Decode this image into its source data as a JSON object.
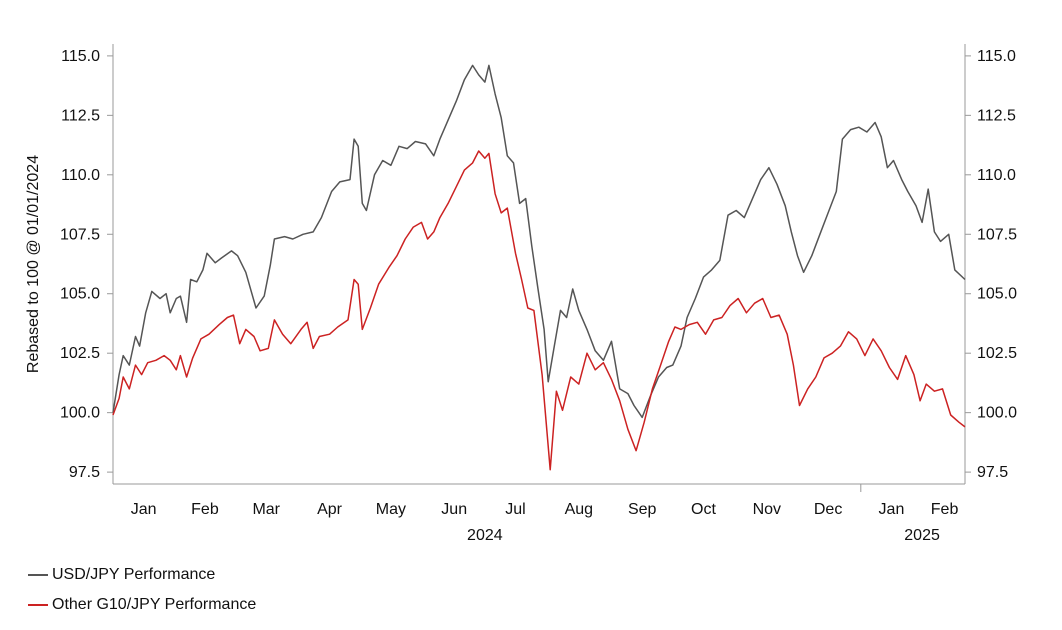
{
  "chart_data": {
    "type": "line",
    "ylabel": "Rebased to 100 @ 01/01/2024",
    "ylim": [
      97.0,
      115.5
    ],
    "y_ticks": [
      "115.0",
      "112.5",
      "110.0",
      "107.5",
      "105.0",
      "102.5",
      "100.0",
      "97.5"
    ],
    "y_tick_values": [
      115.0,
      112.5,
      110.0,
      107.5,
      105.0,
      102.5,
      100.0,
      97.5
    ],
    "x_range": [
      "2024-01-01",
      "2025-02-21"
    ],
    "month_labels": [
      "Jan",
      "Feb",
      "Mar",
      "Apr",
      "May",
      "Jun",
      "Jul",
      "Aug",
      "Sep",
      "Oct",
      "Nov",
      "Dec",
      "Jan",
      "Feb"
    ],
    "month_label_dates": [
      "2024-01-16",
      "2024-02-15",
      "2024-03-16",
      "2024-04-16",
      "2024-05-16",
      "2024-06-16",
      "2024-07-16",
      "2024-08-16",
      "2024-09-16",
      "2024-10-16",
      "2024-11-16",
      "2024-12-16",
      "2025-01-16",
      "2025-02-11"
    ],
    "year_labels": [
      "2024",
      "2025"
    ],
    "year_label_dates": [
      "2024-07-01",
      "2025-01-31"
    ],
    "year_divider_date": "2025-01-01",
    "grid": false,
    "legend_position": "bottom-left",
    "series": [
      {
        "name": "USD/JPY Performance",
        "color": "#555555",
        "points": [
          [
            "2024-01-01",
            100.0
          ],
          [
            "2024-01-04",
            101.6
          ],
          [
            "2024-01-06",
            102.4
          ],
          [
            "2024-01-09",
            102.0
          ],
          [
            "2024-01-12",
            103.2
          ],
          [
            "2024-01-14",
            102.8
          ],
          [
            "2024-01-17",
            104.2
          ],
          [
            "2024-01-20",
            105.1
          ],
          [
            "2024-01-24",
            104.8
          ],
          [
            "2024-01-27",
            105.0
          ],
          [
            "2024-01-29",
            104.2
          ],
          [
            "2024-02-01",
            104.8
          ],
          [
            "2024-02-03",
            104.9
          ],
          [
            "2024-02-06",
            103.8
          ],
          [
            "2024-02-08",
            105.6
          ],
          [
            "2024-02-11",
            105.5
          ],
          [
            "2024-02-14",
            106.0
          ],
          [
            "2024-02-16",
            106.7
          ],
          [
            "2024-02-20",
            106.3
          ],
          [
            "2024-02-23",
            106.5
          ],
          [
            "2024-02-28",
            106.8
          ],
          [
            "2024-03-02",
            106.6
          ],
          [
            "2024-03-06",
            105.9
          ],
          [
            "2024-03-09",
            105.0
          ],
          [
            "2024-03-11",
            104.4
          ],
          [
            "2024-03-15",
            104.9
          ],
          [
            "2024-03-18",
            106.2
          ],
          [
            "2024-03-20",
            107.3
          ],
          [
            "2024-03-25",
            107.4
          ],
          [
            "2024-03-29",
            107.3
          ],
          [
            "2024-04-03",
            107.5
          ],
          [
            "2024-04-08",
            107.6
          ],
          [
            "2024-04-12",
            108.2
          ],
          [
            "2024-04-17",
            109.3
          ],
          [
            "2024-04-21",
            109.7
          ],
          [
            "2024-04-26",
            109.8
          ],
          [
            "2024-04-28",
            111.5
          ],
          [
            "2024-04-30",
            111.2
          ],
          [
            "2024-05-02",
            108.8
          ],
          [
            "2024-05-04",
            108.5
          ],
          [
            "2024-05-08",
            110.0
          ],
          [
            "2024-05-12",
            110.6
          ],
          [
            "2024-05-16",
            110.4
          ],
          [
            "2024-05-20",
            111.2
          ],
          [
            "2024-05-24",
            111.1
          ],
          [
            "2024-05-28",
            111.4
          ],
          [
            "2024-06-02",
            111.3
          ],
          [
            "2024-06-06",
            110.8
          ],
          [
            "2024-06-09",
            111.5
          ],
          [
            "2024-06-13",
            112.3
          ],
          [
            "2024-06-17",
            113.1
          ],
          [
            "2024-06-21",
            114.0
          ],
          [
            "2024-06-25",
            114.6
          ],
          [
            "2024-06-28",
            114.2
          ],
          [
            "2024-07-01",
            113.9
          ],
          [
            "2024-07-03",
            114.6
          ],
          [
            "2024-07-06",
            113.4
          ],
          [
            "2024-07-09",
            112.4
          ],
          [
            "2024-07-12",
            110.8
          ],
          [
            "2024-07-15",
            110.5
          ],
          [
            "2024-07-18",
            108.8
          ],
          [
            "2024-07-21",
            109.0
          ],
          [
            "2024-07-24",
            107.0
          ],
          [
            "2024-07-27",
            105.2
          ],
          [
            "2024-07-30",
            103.5
          ],
          [
            "2024-08-01",
            101.3
          ],
          [
            "2024-08-04",
            102.8
          ],
          [
            "2024-08-07",
            104.3
          ],
          [
            "2024-08-10",
            104.0
          ],
          [
            "2024-08-13",
            105.2
          ],
          [
            "2024-08-16",
            104.3
          ],
          [
            "2024-08-20",
            103.5
          ],
          [
            "2024-08-24",
            102.6
          ],
          [
            "2024-08-28",
            102.2
          ],
          [
            "2024-09-01",
            103.0
          ],
          [
            "2024-09-05",
            101.0
          ],
          [
            "2024-09-09",
            100.8
          ],
          [
            "2024-09-12",
            100.3
          ],
          [
            "2024-09-16",
            99.8
          ],
          [
            "2024-09-20",
            100.7
          ],
          [
            "2024-09-24",
            101.5
          ],
          [
            "2024-09-28",
            101.9
          ],
          [
            "2024-10-01",
            102.0
          ],
          [
            "2024-10-05",
            102.8
          ],
          [
            "2024-10-08",
            104.0
          ],
          [
            "2024-10-12",
            104.8
          ],
          [
            "2024-10-16",
            105.7
          ],
          [
            "2024-10-20",
            106.0
          ],
          [
            "2024-10-24",
            106.4
          ],
          [
            "2024-10-28",
            108.3
          ],
          [
            "2024-11-01",
            108.5
          ],
          [
            "2024-11-05",
            108.2
          ],
          [
            "2024-11-09",
            109.0
          ],
          [
            "2024-11-13",
            109.8
          ],
          [
            "2024-11-17",
            110.3
          ],
          [
            "2024-11-21",
            109.6
          ],
          [
            "2024-11-25",
            108.7
          ],
          [
            "2024-11-28",
            107.6
          ],
          [
            "2024-12-01",
            106.6
          ],
          [
            "2024-12-04",
            105.9
          ],
          [
            "2024-12-08",
            106.6
          ],
          [
            "2024-12-12",
            107.5
          ],
          [
            "2024-12-16",
            108.4
          ],
          [
            "2024-12-20",
            109.3
          ],
          [
            "2024-12-23",
            111.5
          ],
          [
            "2024-12-27",
            111.9
          ],
          [
            "2024-12-31",
            112.0
          ],
          [
            "2025-01-04",
            111.8
          ],
          [
            "2025-01-08",
            112.2
          ],
          [
            "2025-01-11",
            111.6
          ],
          [
            "2025-01-14",
            110.3
          ],
          [
            "2025-01-17",
            110.6
          ],
          [
            "2025-01-21",
            109.8
          ],
          [
            "2025-01-24",
            109.3
          ],
          [
            "2025-01-28",
            108.7
          ],
          [
            "2025-01-31",
            108.0
          ],
          [
            "2025-02-03",
            109.4
          ],
          [
            "2025-02-06",
            107.6
          ],
          [
            "2025-02-09",
            107.2
          ],
          [
            "2025-02-13",
            107.5
          ],
          [
            "2025-02-16",
            106.0
          ],
          [
            "2025-02-21",
            105.6
          ]
        ]
      },
      {
        "name": "Other G10/JPY Performance",
        "color": "#cc2222",
        "points": [
          [
            "2024-01-01",
            99.9
          ],
          [
            "2024-01-04",
            100.6
          ],
          [
            "2024-01-06",
            101.5
          ],
          [
            "2024-01-09",
            101.0
          ],
          [
            "2024-01-12",
            102.0
          ],
          [
            "2024-01-15",
            101.6
          ],
          [
            "2024-01-18",
            102.1
          ],
          [
            "2024-01-22",
            102.2
          ],
          [
            "2024-01-26",
            102.4
          ],
          [
            "2024-01-29",
            102.2
          ],
          [
            "2024-02-01",
            101.8
          ],
          [
            "2024-02-03",
            102.4
          ],
          [
            "2024-02-06",
            101.5
          ],
          [
            "2024-02-09",
            102.3
          ],
          [
            "2024-02-13",
            103.1
          ],
          [
            "2024-02-17",
            103.3
          ],
          [
            "2024-02-22",
            103.7
          ],
          [
            "2024-02-26",
            104.0
          ],
          [
            "2024-02-29",
            104.1
          ],
          [
            "2024-03-03",
            102.9
          ],
          [
            "2024-03-06",
            103.5
          ],
          [
            "2024-03-10",
            103.2
          ],
          [
            "2024-03-13",
            102.6
          ],
          [
            "2024-03-17",
            102.7
          ],
          [
            "2024-03-20",
            103.9
          ],
          [
            "2024-03-24",
            103.3
          ],
          [
            "2024-03-28",
            102.9
          ],
          [
            "2024-04-02",
            103.5
          ],
          [
            "2024-04-05",
            103.8
          ],
          [
            "2024-04-08",
            102.7
          ],
          [
            "2024-04-11",
            103.2
          ],
          [
            "2024-04-16",
            103.3
          ],
          [
            "2024-04-20",
            103.6
          ],
          [
            "2024-04-25",
            103.9
          ],
          [
            "2024-04-28",
            105.6
          ],
          [
            "2024-04-30",
            105.4
          ],
          [
            "2024-05-02",
            103.5
          ],
          [
            "2024-05-06",
            104.4
          ],
          [
            "2024-05-10",
            105.4
          ],
          [
            "2024-05-15",
            106.1
          ],
          [
            "2024-05-19",
            106.6
          ],
          [
            "2024-05-23",
            107.3
          ],
          [
            "2024-05-27",
            107.8
          ],
          [
            "2024-05-31",
            108.0
          ],
          [
            "2024-06-03",
            107.3
          ],
          [
            "2024-06-06",
            107.6
          ],
          [
            "2024-06-09",
            108.2
          ],
          [
            "2024-06-13",
            108.8
          ],
          [
            "2024-06-17",
            109.5
          ],
          [
            "2024-06-21",
            110.2
          ],
          [
            "2024-06-25",
            110.5
          ],
          [
            "2024-06-28",
            111.0
          ],
          [
            "2024-07-01",
            110.7
          ],
          [
            "2024-07-03",
            110.9
          ],
          [
            "2024-07-06",
            109.2
          ],
          [
            "2024-07-09",
            108.4
          ],
          [
            "2024-07-12",
            108.6
          ],
          [
            "2024-07-16",
            106.7
          ],
          [
            "2024-07-19",
            105.6
          ],
          [
            "2024-07-22",
            104.4
          ],
          [
            "2024-07-25",
            104.3
          ],
          [
            "2024-07-29",
            101.6
          ],
          [
            "2024-08-02",
            97.6
          ],
          [
            "2024-08-05",
            100.9
          ],
          [
            "2024-08-08",
            100.1
          ],
          [
            "2024-08-12",
            101.5
          ],
          [
            "2024-08-16",
            101.2
          ],
          [
            "2024-08-20",
            102.5
          ],
          [
            "2024-08-24",
            101.8
          ],
          [
            "2024-08-28",
            102.1
          ],
          [
            "2024-09-01",
            101.4
          ],
          [
            "2024-09-05",
            100.5
          ],
          [
            "2024-09-09",
            99.3
          ],
          [
            "2024-09-13",
            98.4
          ],
          [
            "2024-09-17",
            99.6
          ],
          [
            "2024-09-21",
            101.0
          ],
          [
            "2024-09-25",
            102.0
          ],
          [
            "2024-09-29",
            103.0
          ],
          [
            "2024-10-02",
            103.6
          ],
          [
            "2024-10-05",
            103.5
          ],
          [
            "2024-10-09",
            103.7
          ],
          [
            "2024-10-13",
            103.8
          ],
          [
            "2024-10-17",
            103.3
          ],
          [
            "2024-10-21",
            103.9
          ],
          [
            "2024-10-25",
            104.0
          ],
          [
            "2024-10-29",
            104.5
          ],
          [
            "2024-11-02",
            104.8
          ],
          [
            "2024-11-06",
            104.2
          ],
          [
            "2024-11-10",
            104.6
          ],
          [
            "2024-11-14",
            104.8
          ],
          [
            "2024-11-18",
            104.0
          ],
          [
            "2024-11-22",
            104.1
          ],
          [
            "2024-11-26",
            103.3
          ],
          [
            "2024-11-29",
            102.0
          ],
          [
            "2024-12-02",
            100.3
          ],
          [
            "2024-12-06",
            101.0
          ],
          [
            "2024-12-10",
            101.5
          ],
          [
            "2024-12-14",
            102.3
          ],
          [
            "2024-12-18",
            102.5
          ],
          [
            "2024-12-22",
            102.8
          ],
          [
            "2024-12-26",
            103.4
          ],
          [
            "2024-12-30",
            103.1
          ],
          [
            "2025-01-03",
            102.4
          ],
          [
            "2025-01-07",
            103.1
          ],
          [
            "2025-01-11",
            102.6
          ],
          [
            "2025-01-15",
            101.9
          ],
          [
            "2025-01-19",
            101.4
          ],
          [
            "2025-01-23",
            102.4
          ],
          [
            "2025-01-27",
            101.6
          ],
          [
            "2025-01-30",
            100.5
          ],
          [
            "2025-02-02",
            101.2
          ],
          [
            "2025-02-06",
            100.9
          ],
          [
            "2025-02-10",
            101.0
          ],
          [
            "2025-02-14",
            99.9
          ],
          [
            "2025-02-18",
            99.6
          ],
          [
            "2025-02-21",
            99.4
          ]
        ]
      }
    ]
  },
  "legend": {
    "items": [
      {
        "label": "USD/JPY Performance",
        "color": "#555555"
      },
      {
        "label": "Other G10/JPY Performance",
        "color": "#cc2222"
      }
    ]
  },
  "colors": {
    "axis": "#999999",
    "text": "#111111"
  }
}
